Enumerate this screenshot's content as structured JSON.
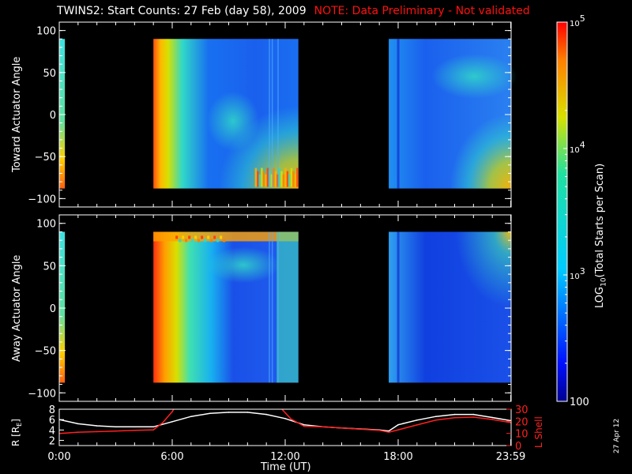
{
  "title": "TWINS2: Start Counts: 27 Feb (day  58), 2009",
  "note": "NOTE: Data Preliminary - Not validated",
  "side_date": "27 Apr 12",
  "colors": {
    "note": "#ff1010",
    "rshell": "#ffffff",
    "lshell": "#ff2020"
  },
  "chart_data": [
    {
      "type": "heatmap",
      "ylabel": "Toward Actuator Angle",
      "ylim": [
        -110,
        110
      ],
      "yticks": [
        "100",
        "50",
        "0",
        "−50",
        "−100"
      ],
      "ytick_values": [
        100,
        50,
        0,
        -50,
        -100
      ],
      "angle_range": [
        -88,
        90
      ],
      "data_intervals_hours": [
        [
          0,
          0.3
        ],
        [
          5.0,
          12.7
        ],
        [
          17.5,
          23.98
        ]
      ],
      "z_scale": "log10",
      "z_range": [
        100,
        100000
      ]
    },
    {
      "type": "heatmap",
      "ylabel": "Away Actuator Angle",
      "ylim": [
        -110,
        110
      ],
      "yticks": [
        "100",
        "50",
        "0",
        "−50",
        "−100"
      ],
      "ytick_values": [
        100,
        50,
        0,
        -50,
        -100
      ],
      "angle_range": [
        -88,
        90
      ],
      "data_intervals_hours": [
        [
          0,
          0.3
        ],
        [
          5.0,
          12.7
        ],
        [
          17.5,
          23.98
        ]
      ],
      "z_scale": "log10",
      "z_range": [
        100,
        100000
      ]
    },
    {
      "type": "line",
      "ylabel": "R [R",
      "ylabel_sub": "E",
      "ylabel_end": "]",
      "ylabel_right": "L Shell",
      "ylim_left": [
        1,
        8
      ],
      "yticks_left": [
        2,
        4,
        6,
        8
      ],
      "ylim_right": [
        0,
        30
      ],
      "yticks_right": [
        0,
        10,
        20,
        30
      ],
      "xticks": [
        "0:00",
        "6:00",
        "12:00",
        "18:00",
        "23:59"
      ],
      "xtick_values": [
        0,
        6,
        12,
        18,
        23.98
      ],
      "xlabel": "Time (UT)",
      "series": [
        {
          "axis": "left",
          "color": "#ffffff",
          "x": [
            0,
            1,
            2,
            3,
            4,
            5,
            6,
            7,
            8,
            9,
            10,
            11,
            12,
            13,
            14,
            15,
            16,
            17,
            17.5,
            18,
            19,
            20,
            21,
            22,
            23,
            23.98
          ],
          "y": [
            6.0,
            5.2,
            4.8,
            4.6,
            4.6,
            4.6,
            5.6,
            6.6,
            7.2,
            7.4,
            7.4,
            7.0,
            6.2,
            5.0,
            4.6,
            4.4,
            4.2,
            4.0,
            3.8,
            5.0,
            5.9,
            6.6,
            7.0,
            7.0,
            6.4,
            5.8
          ]
        },
        {
          "axis": "right",
          "color": "#ff2020",
          "x": [
            0,
            1,
            2,
            3,
            4,
            5,
            5.5,
            6.0,
            6.1,
            11.8,
            12.3,
            13,
            14,
            15,
            16,
            17,
            17.5,
            18,
            19,
            20,
            21,
            22,
            23,
            23.98
          ],
          "y": [
            10.0,
            11.0,
            11.5,
            12.0,
            12.5,
            13.0,
            19.0,
            28.0,
            30.5,
            30.5,
            22.0,
            16.0,
            15.5,
            14.5,
            13.5,
            12.5,
            11.0,
            13.0,
            17.0,
            21.0,
            23.0,
            23.5,
            21.5,
            19.0
          ]
        }
      ]
    },
    {
      "type": "colorbar",
      "label": "LOG",
      "label_sub": "10",
      "label_end": "(Total Starts per Scan)",
      "ticks": [
        {
          "value": 100000,
          "base": "10",
          "exp": "5"
        },
        {
          "value": 10000,
          "base": "10",
          "exp": "4"
        },
        {
          "value": 1000,
          "base": "10",
          "exp": "3"
        },
        {
          "value": 100,
          "text": "100"
        }
      ]
    }
  ]
}
